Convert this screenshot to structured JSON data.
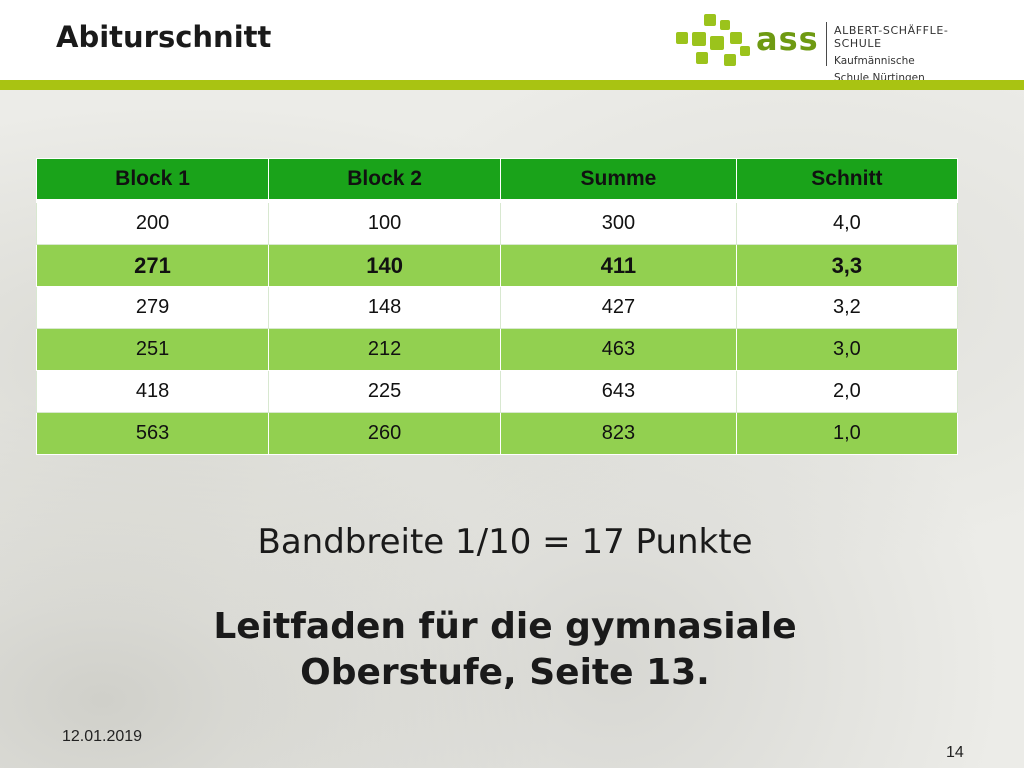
{
  "header": {
    "title": "Abiturschnitt",
    "logo_text": "ass",
    "school_line1": "ALBERT-SCHÄFFLE-SCHULE",
    "school_line2": "Kaufmännische",
    "school_line3": "Schule Nürtingen"
  },
  "table": {
    "headers": [
      "Block 1",
      "Block 2",
      "Summe",
      "Schnitt"
    ],
    "rows": [
      [
        "200",
        "100",
        "300",
        "4,0"
      ],
      [
        "271",
        "140",
        "411",
        "3,3"
      ],
      [
        "279",
        "148",
        "427",
        "3,2"
      ],
      [
        "251",
        "212",
        "463",
        "3,0"
      ],
      [
        "418",
        "225",
        "643",
        "2,0"
      ],
      [
        "563",
        "260",
        "823",
        "1,0"
      ]
    ]
  },
  "bandwidth_text": "Bandbreite 1/10 = 17 Punkte",
  "guide_line1": "Leitfaden für die gymnasiale",
  "guide_line2": "Oberstufe, Seite 13.",
  "footer": {
    "date": "12.01.2019",
    "page_number": "14"
  },
  "colors": {
    "header_green": "#1aa31a",
    "row_green": "#92d050",
    "accent_rule": "#a9c312"
  }
}
